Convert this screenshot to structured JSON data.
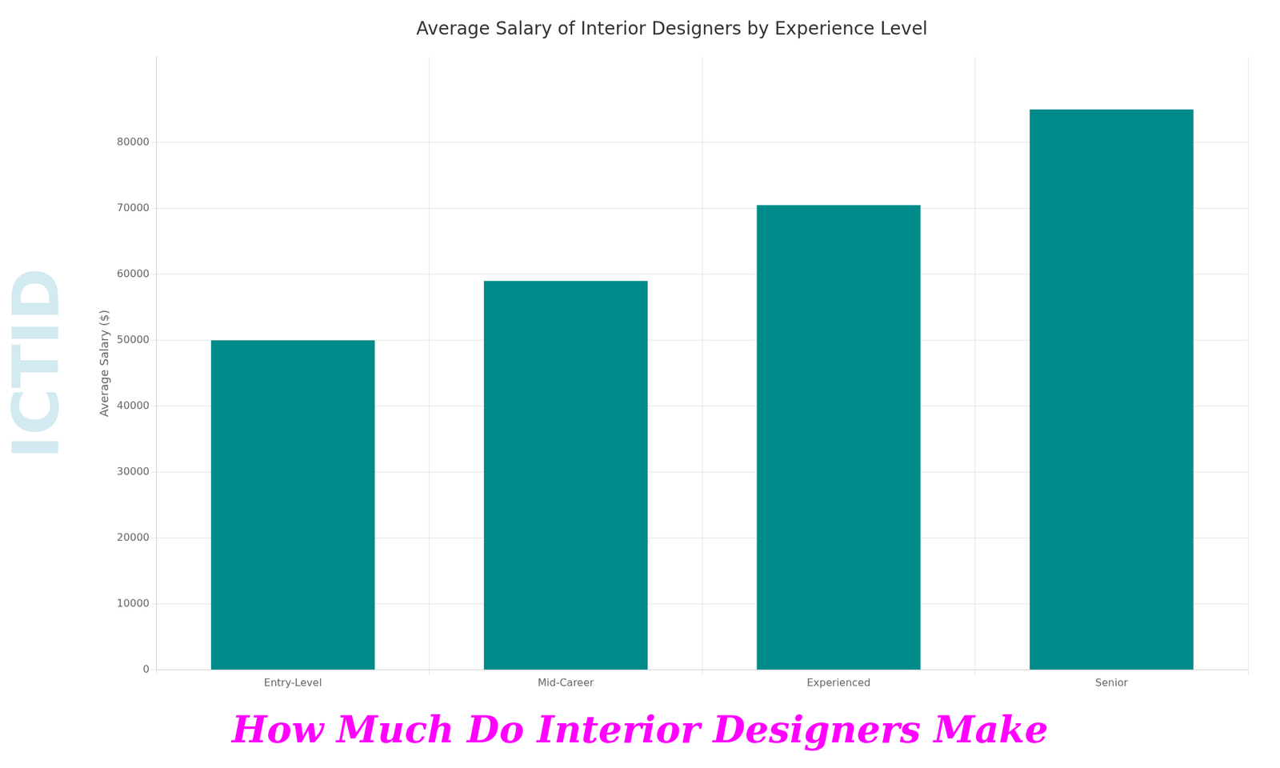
{
  "chart_data": {
    "type": "bar",
    "title": "Average Salary of Interior Designers by Experience Level",
    "ylabel": "Average Salary ($)",
    "categories": [
      "Entry-Level",
      "Mid-Career",
      "Experienced",
      "Senior"
    ],
    "values": [
      50000,
      59000,
      70500,
      85000
    ],
    "color": "#008B8B",
    "ylim": [
      0,
      93000
    ],
    "yticks": [
      0,
      10000,
      20000,
      30000,
      40000,
      50000,
      60000,
      70000,
      80000
    ],
    "grid": true,
    "annotations": [
      {
        "text": "How Much Do Interior Designers Make",
        "color": "#ff00ff"
      },
      {
        "text": "ICTID",
        "color": "#add8e6"
      }
    ]
  }
}
